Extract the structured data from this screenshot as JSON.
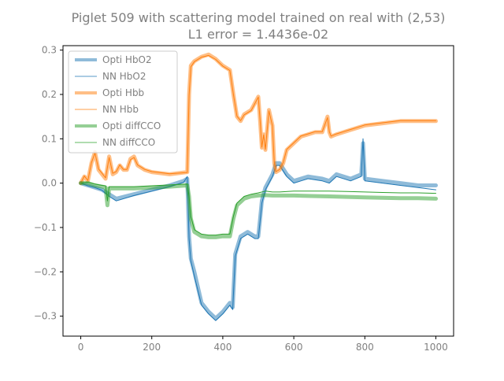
{
  "chart_data": {
    "type": "line",
    "title": "Piglet 509 with scattering model trained on real with (2,53)",
    "subtitle": "L1 error = 1.4436e-02",
    "xlabel": "",
    "ylabel": "",
    "xlim": [
      -50,
      1050
    ],
    "ylim": [
      -0.345,
      0.31
    ],
    "xticks": [
      0,
      200,
      400,
      600,
      800,
      1000
    ],
    "yticks": [
      -0.3,
      -0.2,
      -0.1,
      0.0,
      0.1,
      0.2,
      0.3
    ],
    "xtick_labels": [
      "0",
      "200",
      "400",
      "600",
      "800",
      "1000"
    ],
    "ytick_labels": [
      "−0.3",
      "−0.2",
      "−0.1",
      "0.0",
      "0.1",
      "0.2",
      "0.3"
    ],
    "grid": false,
    "legend_position": "upper-left",
    "series": [
      {
        "name": "Opti HbO2",
        "color": "#1f77b4",
        "style": "thick",
        "x": [
          0,
          20,
          40,
          60,
          80,
          100,
          150,
          200,
          250,
          290,
          300,
          305,
          310,
          320,
          340,
          360,
          380,
          400,
          420,
          428,
          435,
          450,
          470,
          490,
          500,
          505,
          510,
          520,
          540,
          550,
          560,
          580,
          600,
          620,
          640,
          680,
          700,
          720,
          760,
          790,
          795,
          800,
          850,
          900,
          950,
          1000
        ],
        "y": [
          0.0,
          -0.005,
          -0.01,
          -0.015,
          -0.025,
          -0.035,
          -0.025,
          -0.015,
          -0.005,
          0.005,
          0.01,
          -0.12,
          -0.17,
          -0.2,
          -0.27,
          -0.29,
          -0.305,
          -0.29,
          -0.27,
          -0.28,
          -0.16,
          -0.12,
          -0.11,
          -0.12,
          -0.12,
          -0.08,
          -0.04,
          -0.01,
          0.02,
          0.045,
          0.045,
          0.02,
          0.005,
          0.01,
          0.015,
          0.01,
          0.005,
          0.02,
          0.01,
          0.02,
          0.09,
          0.01,
          0.005,
          0.0,
          -0.005,
          -0.005
        ]
      },
      {
        "name": "NN HbO2",
        "color": "#1f77b4",
        "style": "thin",
        "x": [
          0,
          20,
          40,
          60,
          80,
          100,
          150,
          200,
          250,
          290,
          300,
          305,
          310,
          320,
          340,
          360,
          380,
          400,
          420,
          428,
          435,
          450,
          470,
          490,
          500,
          505,
          510,
          520,
          540,
          550,
          560,
          580,
          600,
          620,
          640,
          680,
          700,
          720,
          760,
          790,
          795,
          800,
          850,
          900,
          950,
          1000
        ],
        "y": [
          0.0,
          -0.006,
          -0.01,
          -0.016,
          -0.03,
          -0.04,
          -0.028,
          -0.018,
          -0.008,
          0.002,
          0.015,
          -0.125,
          -0.175,
          -0.21,
          -0.275,
          -0.295,
          -0.31,
          -0.295,
          -0.275,
          -0.285,
          -0.165,
          -0.125,
          -0.115,
          -0.125,
          -0.125,
          -0.085,
          -0.045,
          -0.015,
          0.015,
          0.04,
          0.04,
          0.015,
          0.0,
          0.005,
          0.01,
          0.005,
          0.0,
          0.015,
          0.005,
          0.015,
          0.1,
          0.005,
          0.0,
          -0.005,
          -0.01,
          -0.015
        ]
      },
      {
        "name": "Opti Hbb",
        "color": "#ff7f0e",
        "style": "thick",
        "x": [
          0,
          10,
          20,
          30,
          40,
          50,
          60,
          70,
          80,
          90,
          100,
          110,
          120,
          130,
          140,
          150,
          160,
          180,
          200,
          250,
          300,
          305,
          310,
          320,
          340,
          360,
          380,
          400,
          420,
          430,
          440,
          450,
          460,
          480,
          500,
          505,
          510,
          515,
          520,
          530,
          540,
          545,
          550,
          560,
          570,
          580,
          600,
          620,
          640,
          660,
          680,
          695,
          700,
          705,
          720,
          740,
          760,
          780,
          800,
          850,
          900,
          950,
          1000
        ],
        "y": [
          0.0,
          0.015,
          0.005,
          0.045,
          0.07,
          0.03,
          0.02,
          0.01,
          0.06,
          0.02,
          0.025,
          0.04,
          0.03,
          0.03,
          0.055,
          0.06,
          0.04,
          0.03,
          0.025,
          0.02,
          0.025,
          0.2,
          0.265,
          0.275,
          0.285,
          0.29,
          0.28,
          0.265,
          0.255,
          0.2,
          0.15,
          0.14,
          0.155,
          0.165,
          0.195,
          0.14,
          0.08,
          0.11,
          0.075,
          0.165,
          0.13,
          0.045,
          0.025,
          0.03,
          0.045,
          0.075,
          0.09,
          0.105,
          0.11,
          0.115,
          0.115,
          0.15,
          0.115,
          0.105,
          0.11,
          0.115,
          0.12,
          0.125,
          0.13,
          0.135,
          0.14,
          0.14,
          0.14
        ]
      },
      {
        "name": "NN Hbb",
        "color": "#ff7f0e",
        "style": "thin",
        "x": [
          0,
          10,
          20,
          30,
          40,
          50,
          60,
          70,
          80,
          90,
          100,
          110,
          120,
          130,
          140,
          150,
          160,
          180,
          200,
          250,
          300,
          305,
          310,
          320,
          340,
          360,
          380,
          400,
          420,
          430,
          440,
          450,
          460,
          480,
          500,
          505,
          510,
          515,
          520,
          530,
          540,
          545,
          550,
          560,
          570,
          580,
          600,
          620,
          640,
          660,
          680,
          695,
          700,
          705,
          720,
          740,
          760,
          780,
          800,
          850,
          900,
          950,
          1000
        ],
        "y": [
          0.0,
          0.016,
          0.006,
          0.046,
          0.068,
          0.032,
          0.022,
          0.012,
          0.058,
          0.022,
          0.026,
          0.041,
          0.031,
          0.031,
          0.053,
          0.058,
          0.041,
          0.031,
          0.026,
          0.021,
          0.024,
          0.198,
          0.262,
          0.274,
          0.284,
          0.288,
          0.279,
          0.264,
          0.254,
          0.2,
          0.151,
          0.141,
          0.154,
          0.164,
          0.194,
          0.141,
          0.081,
          0.109,
          0.076,
          0.163,
          0.129,
          0.046,
          0.026,
          0.031,
          0.046,
          0.076,
          0.091,
          0.106,
          0.111,
          0.116,
          0.116,
          0.148,
          0.116,
          0.106,
          0.111,
          0.116,
          0.121,
          0.126,
          0.131,
          0.136,
          0.141,
          0.141,
          0.141
        ]
      },
      {
        "name": "Opti diffCCO",
        "color": "#2ca02c",
        "style": "thick",
        "x": [
          0,
          20,
          40,
          60,
          70,
          75,
          80,
          100,
          150,
          200,
          250,
          300,
          305,
          310,
          320,
          340,
          360,
          380,
          400,
          420,
          430,
          440,
          460,
          480,
          500,
          520,
          540,
          560,
          600,
          650,
          700,
          750,
          800,
          850,
          900,
          950,
          1000
        ],
        "y": [
          0.0,
          0.0,
          -0.005,
          -0.008,
          -0.01,
          -0.05,
          -0.012,
          -0.012,
          -0.012,
          -0.01,
          -0.008,
          -0.005,
          -0.03,
          -0.08,
          -0.11,
          -0.12,
          -0.122,
          -0.122,
          -0.12,
          -0.12,
          -0.08,
          -0.05,
          -0.035,
          -0.03,
          -0.028,
          -0.027,
          -0.028,
          -0.028,
          -0.028,
          -0.029,
          -0.03,
          -0.031,
          -0.032,
          -0.033,
          -0.034,
          -0.034,
          -0.035
        ]
      },
      {
        "name": "NN diffCCO",
        "color": "#2ca02c",
        "style": "thin",
        "x": [
          0,
          20,
          40,
          60,
          70,
          75,
          80,
          100,
          150,
          200,
          250,
          300,
          305,
          310,
          320,
          340,
          360,
          380,
          400,
          420,
          430,
          440,
          460,
          480,
          500,
          520,
          540,
          560,
          600,
          650,
          700,
          750,
          800,
          850,
          900,
          950,
          1000
        ],
        "y": [
          0.0,
          0.002,
          -0.002,
          -0.005,
          -0.006,
          -0.04,
          -0.008,
          -0.008,
          -0.008,
          -0.006,
          -0.004,
          -0.002,
          -0.03,
          -0.075,
          -0.105,
          -0.115,
          -0.117,
          -0.117,
          -0.115,
          -0.115,
          -0.075,
          -0.045,
          -0.03,
          -0.025,
          -0.022,
          -0.018,
          -0.02,
          -0.02,
          -0.018,
          -0.018,
          -0.018,
          -0.019,
          -0.02,
          -0.021,
          -0.022,
          -0.022,
          -0.023
        ]
      }
    ]
  }
}
